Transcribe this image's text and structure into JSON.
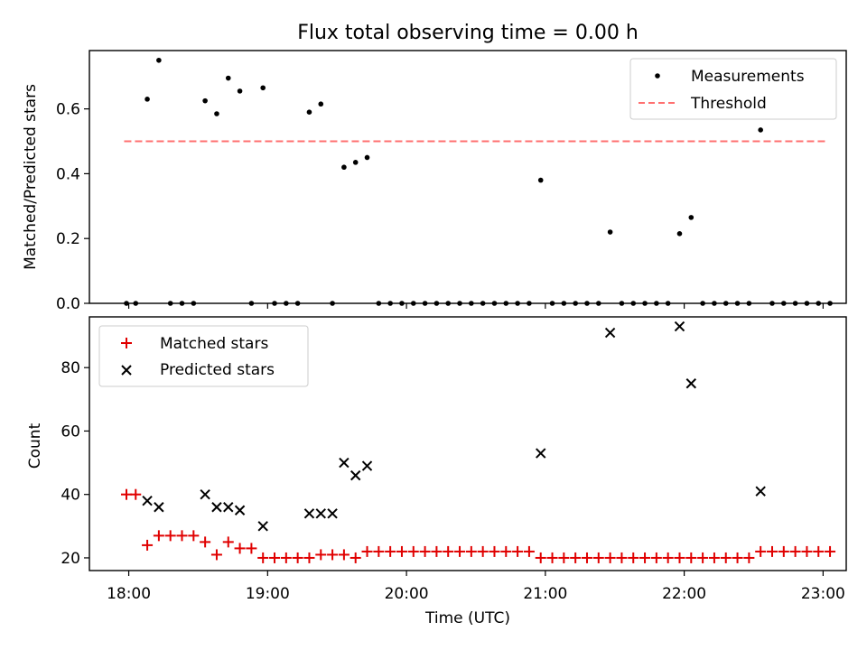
{
  "title": "Flux total observing time = 0.00 h",
  "colors": {
    "measurements": "#000000",
    "threshold": "#ff7070",
    "matched": "#e00000",
    "predicted": "#000000"
  },
  "chart_data": [
    {
      "type": "scatter",
      "ylabel": "Matched/Predicted stars",
      "xlim": [
        "17:43",
        "23:10"
      ],
      "ylim": [
        0,
        0.78
      ],
      "y_ticks": [
        0.0,
        0.2,
        0.4,
        0.6
      ],
      "y_tick_labels": [
        "0.0",
        "0.2",
        "0.4",
        "0.6"
      ],
      "grid": false,
      "legend": {
        "placement": "top-right",
        "entries": [
          "Measurements",
          "Threshold"
        ]
      },
      "threshold": {
        "name": "Threshold",
        "value": 0.5,
        "x_start": "17:58",
        "x_end": "23:01"
      },
      "series": [
        {
          "name": "Measurements",
          "marker": "dot",
          "x": [
            "17:59",
            "18:03",
            "18:08",
            "18:13",
            "18:18",
            "18:23",
            "18:28",
            "18:33",
            "18:38",
            "18:43",
            "18:48",
            "18:53",
            "18:58",
            "19:03",
            "19:08",
            "19:13",
            "19:18",
            "19:23",
            "19:28",
            "19:33",
            "19:38",
            "19:43",
            "19:48",
            "19:53",
            "19:58",
            "20:03",
            "20:08",
            "20:13",
            "20:18",
            "20:23",
            "20:28",
            "20:33",
            "20:38",
            "20:43",
            "20:48",
            "20:53",
            "20:58",
            "21:03",
            "21:08",
            "21:13",
            "21:18",
            "21:23",
            "21:28",
            "21:33",
            "21:38",
            "21:43",
            "21:48",
            "21:53",
            "21:58",
            "22:03",
            "22:08",
            "22:13",
            "22:18",
            "22:23",
            "22:28",
            "22:33",
            "22:38",
            "22:43",
            "22:48",
            "22:53",
            "22:58",
            "23:03"
          ],
          "y": [
            0,
            0,
            0.63,
            0.75,
            0,
            0,
            0,
            0.625,
            0.585,
            0.695,
            0.655,
            0,
            0.665,
            0,
            0,
            0,
            0.59,
            0.615,
            0,
            0.42,
            0.435,
            0.45,
            0,
            0,
            0,
            0,
            0,
            0,
            0,
            0,
            0,
            0,
            0,
            0,
            0,
            0,
            0.38,
            0,
            0,
            0,
            0,
            0,
            0.22,
            0,
            0,
            0,
            0,
            0,
            0.215,
            0.265,
            0,
            0,
            0,
            0,
            0,
            0.535,
            0,
            0,
            0,
            0,
            0,
            0
          ]
        }
      ]
    },
    {
      "type": "scatter",
      "xlabel": "Time (UTC)",
      "ylabel": "Count",
      "xlim": [
        "17:43",
        "23:10"
      ],
      "ylim": [
        16,
        96
      ],
      "x_ticks": [
        "18:00",
        "19:00",
        "20:00",
        "21:00",
        "22:00",
        "23:00"
      ],
      "y_ticks": [
        20,
        40,
        60,
        80
      ],
      "y_tick_labels": [
        "20",
        "40",
        "60",
        "80"
      ],
      "grid": false,
      "legend": {
        "placement": "top-left",
        "entries": [
          "Matched stars",
          "Predicted stars"
        ]
      },
      "series": [
        {
          "name": "Matched stars",
          "marker": "plus",
          "x": [
            "17:59",
            "18:03",
            "18:08",
            "18:13",
            "18:18",
            "18:23",
            "18:28",
            "18:33",
            "18:38",
            "18:43",
            "18:48",
            "18:53",
            "18:58",
            "19:03",
            "19:08",
            "19:13",
            "19:18",
            "19:23",
            "19:28",
            "19:33",
            "19:38",
            "19:43",
            "19:48",
            "19:53",
            "19:58",
            "20:03",
            "20:08",
            "20:13",
            "20:18",
            "20:23",
            "20:28",
            "20:33",
            "20:38",
            "20:43",
            "20:48",
            "20:53",
            "20:58",
            "21:03",
            "21:08",
            "21:13",
            "21:18",
            "21:23",
            "21:28",
            "21:33",
            "21:38",
            "21:43",
            "21:48",
            "21:53",
            "21:58",
            "22:03",
            "22:08",
            "22:13",
            "22:18",
            "22:23",
            "22:28",
            "22:33",
            "22:38",
            "22:43",
            "22:48",
            "22:53",
            "22:58",
            "23:03"
          ],
          "y": [
            40,
            40,
            24,
            27,
            27,
            27,
            27,
            25,
            21,
            25,
            23,
            23,
            20,
            20,
            20,
            20,
            20,
            21,
            21,
            21,
            20,
            22,
            22,
            22,
            22,
            22,
            22,
            22,
            22,
            22,
            22,
            22,
            22,
            22,
            22,
            22,
            20,
            20,
            20,
            20,
            20,
            20,
            20,
            20,
            20,
            20,
            20,
            20,
            20,
            20,
            20,
            20,
            20,
            20,
            20,
            22,
            22,
            22,
            22,
            22,
            22,
            22
          ]
        },
        {
          "name": "Predicted stars",
          "marker": "x",
          "x": [
            "18:08",
            "18:13",
            "18:33",
            "18:38",
            "18:43",
            "18:48",
            "18:58",
            "19:18",
            "19:23",
            "19:28",
            "19:33",
            "19:38",
            "19:43",
            "20:58",
            "21:28",
            "21:58",
            "22:03",
            "22:33"
          ],
          "y": [
            38,
            36,
            40,
            36,
            36,
            35,
            30,
            34,
            34,
            34,
            50,
            46,
            49,
            53,
            91,
            93,
            75,
            41
          ]
        }
      ]
    }
  ]
}
